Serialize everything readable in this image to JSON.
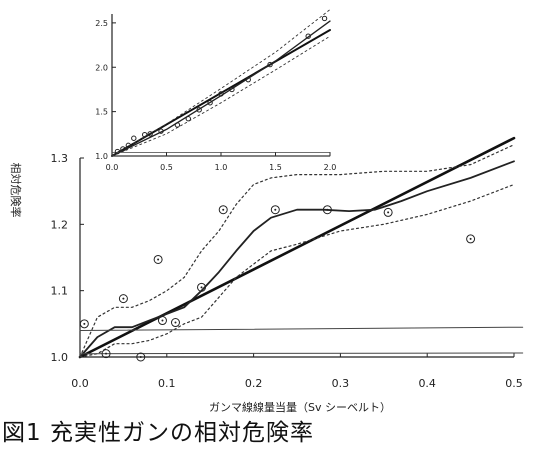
{
  "figure_caption": "図1 充実性ガンの相対危険率",
  "chart_data": [
    {
      "type": "line",
      "xlabel": "ガンマ線線量当量（Sv シーベルト）",
      "ylabel": "相対危険率",
      "xlim": [
        0.0,
        0.5
      ],
      "ylim": [
        1.0,
        1.3
      ],
      "x_ticks": [
        "0.0",
        "0.1",
        "0.2",
        "0.3",
        "0.4",
        "0.5"
      ],
      "y_ticks": [
        "1.0",
        "1.1",
        "1.2",
        "1.3"
      ],
      "grid": false,
      "points": [
        {
          "x": 0.005,
          "y": 1.05
        },
        {
          "x": 0.03,
          "y": 1.005
        },
        {
          "x": 0.05,
          "y": 1.088
        },
        {
          "x": 0.07,
          "y": 1.0
        },
        {
          "x": 0.09,
          "y": 1.147
        },
        {
          "x": 0.095,
          "y": 1.055
        },
        {
          "x": 0.11,
          "y": 1.052
        },
        {
          "x": 0.14,
          "y": 1.105
        },
        {
          "x": 0.165,
          "y": 1.222
        },
        {
          "x": 0.225,
          "y": 1.222
        },
        {
          "x": 0.285,
          "y": 1.222
        },
        {
          "x": 0.355,
          "y": 1.218
        },
        {
          "x": 0.45,
          "y": 1.178
        }
      ],
      "series": [
        {
          "style": "linear-fit",
          "x": [
            0.0,
            0.5
          ],
          "y": [
            1.0,
            1.33
          ]
        },
        {
          "style": "smoothed",
          "x": [
            0.0,
            0.02,
            0.04,
            0.06,
            0.08,
            0.1,
            0.12,
            0.14,
            0.16,
            0.18,
            0.2,
            0.22,
            0.25,
            0.28,
            0.31,
            0.34,
            0.37,
            0.4,
            0.45,
            0.5
          ],
          "y": [
            1.0,
            1.03,
            1.045,
            1.045,
            1.055,
            1.065,
            1.075,
            1.1,
            1.128,
            1.16,
            1.19,
            1.21,
            1.222,
            1.222,
            1.22,
            1.222,
            1.235,
            1.25,
            1.27,
            1.295
          ]
        },
        {
          "style": "upper-bound",
          "x": [
            0.0,
            0.02,
            0.04,
            0.06,
            0.08,
            0.1,
            0.12,
            0.14,
            0.16,
            0.18,
            0.2,
            0.22,
            0.25,
            0.3,
            0.35,
            0.4,
            0.45,
            0.5
          ],
          "y": [
            1.0,
            1.06,
            1.075,
            1.075,
            1.085,
            1.1,
            1.12,
            1.16,
            1.19,
            1.23,
            1.26,
            1.27,
            1.275,
            1.275,
            1.28,
            1.28,
            1.29,
            1.32
          ]
        },
        {
          "style": "lower-bound",
          "x": [
            0.0,
            0.02,
            0.04,
            0.06,
            0.08,
            0.1,
            0.12,
            0.14,
            0.16,
            0.18,
            0.2,
            0.22,
            0.25,
            0.3,
            0.35,
            0.4,
            0.45,
            0.5
          ],
          "y": [
            1.0,
            1.005,
            1.02,
            1.02,
            1.025,
            1.035,
            1.05,
            1.06,
            1.09,
            1.12,
            1.14,
            1.16,
            1.17,
            1.19,
            1.2,
            1.215,
            1.235,
            1.26
          ]
        },
        {
          "style": "reference",
          "x": [
            0.0,
            0.51
          ],
          "y": [
            1.04,
            1.045
          ]
        },
        {
          "style": "reference",
          "x": [
            0.0,
            0.51
          ],
          "y": [
            1.005,
            1.006
          ]
        }
      ]
    },
    {
      "type": "line",
      "xlim": [
        0.0,
        2.0
      ],
      "ylim": [
        1.0,
        2.6
      ],
      "x_ticks": [
        "0.0",
        "0.5",
        "1.0",
        "1.5",
        "2.0"
      ],
      "y_ticks": [
        "1.0",
        "1.5",
        "2.0",
        "2.5"
      ],
      "grid": false,
      "points": [
        {
          "x": 0.05,
          "y": 1.05
        },
        {
          "x": 0.1,
          "y": 1.08
        },
        {
          "x": 0.15,
          "y": 1.12
        },
        {
          "x": 0.2,
          "y": 1.2
        },
        {
          "x": 0.3,
          "y": 1.24
        },
        {
          "x": 0.35,
          "y": 1.25
        },
        {
          "x": 0.45,
          "y": 1.28
        },
        {
          "x": 0.6,
          "y": 1.35
        },
        {
          "x": 0.7,
          "y": 1.42
        },
        {
          "x": 0.8,
          "y": 1.52
        },
        {
          "x": 0.9,
          "y": 1.6
        },
        {
          "x": 1.0,
          "y": 1.7
        },
        {
          "x": 1.1,
          "y": 1.75
        },
        {
          "x": 1.25,
          "y": 1.86
        },
        {
          "x": 1.45,
          "y": 2.03
        },
        {
          "x": 1.8,
          "y": 2.35
        },
        {
          "x": 1.95,
          "y": 2.55
        }
      ],
      "series": [
        {
          "style": "linear-fit",
          "x": [
            0.0,
            2.0
          ],
          "y": [
            1.0,
            2.42
          ]
        },
        {
          "style": "smoothed",
          "x": [
            0.0,
            0.5,
            1.0,
            1.5,
            2.0
          ],
          "y": [
            1.0,
            1.3,
            1.68,
            2.07,
            2.52
          ]
        },
        {
          "style": "upper-bound",
          "x": [
            0.0,
            0.5,
            1.0,
            1.5,
            2.0
          ],
          "y": [
            1.0,
            1.36,
            1.76,
            2.17,
            2.65
          ]
        },
        {
          "style": "lower-bound",
          "x": [
            0.0,
            0.5,
            1.0,
            1.5,
            2.0
          ],
          "y": [
            1.0,
            1.25,
            1.6,
            1.97,
            2.35
          ]
        },
        {
          "style": "reference",
          "x": [
            0.0,
            2.0
          ],
          "y": [
            1.04,
            1.04
          ]
        },
        {
          "style": "reference",
          "x": [
            0.0,
            2.0
          ],
          "y": [
            1.0,
            1.0
          ]
        }
      ]
    }
  ]
}
